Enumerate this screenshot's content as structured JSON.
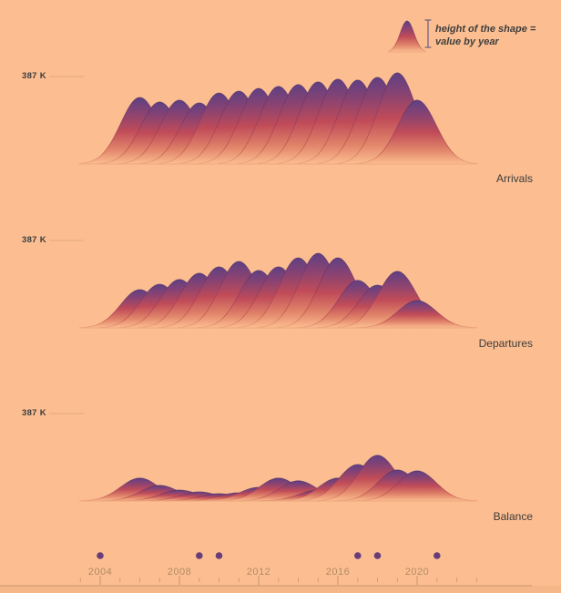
{
  "legend": {
    "line1": "height of the shape =",
    "line2": "value by year"
  },
  "chart_data": {
    "type": "area",
    "variant": "ridgeline",
    "years": [
      2006,
      2007,
      2008,
      2009,
      2010,
      2011,
      2012,
      2013,
      2014,
      2015,
      2016,
      2017,
      2018,
      2019,
      2020
    ],
    "unit": "thousands",
    "reference_label": "387 K",
    "reference_k": 387,
    "series": [
      {
        "name": "Arrivals",
        "values_k": [
          294,
          274,
          282,
          270,
          314,
          322,
          334,
          343,
          351,
          363,
          375,
          371,
          383,
          403,
          282
        ]
      },
      {
        "name": "Departures",
        "values_k": [
          169,
          193,
          214,
          242,
          270,
          294,
          254,
          270,
          310,
          330,
          310,
          210,
          189,
          250,
          121
        ]
      },
      {
        "name": "Balance",
        "values_k": [
          101,
          69,
          48,
          40,
          32,
          36,
          60,
          101,
          89,
          48,
          101,
          161,
          202,
          137,
          133
        ]
      }
    ],
    "axis": {
      "tick_start_year": 2003,
      "tick_end_year": 2023,
      "labeled_years": [
        2004,
        2008,
        2012,
        2016,
        2020
      ]
    },
    "event_dot_years": [
      2004,
      2009,
      2010,
      2017,
      2018,
      2021
    ]
  },
  "colors": {
    "background": "#fcbe90",
    "ridge_gradient": [
      "#5f4084",
      "#8d4370",
      "#c04b58",
      "#e1856a",
      "#fcbe90"
    ],
    "ridge_gradient_stops": [
      0,
      0.25,
      0.5,
      0.78,
      1
    ],
    "ridge_stroke_gradient": [
      "#50336f",
      "#9c3f5e",
      "#c5564f",
      "#eda57d"
    ],
    "ridge_stroke_stops": [
      0,
      0.5,
      0.8,
      1
    ],
    "dot": "#6a3d7a",
    "axis": "#a97f58",
    "year_label": "#b28a64",
    "reference_line": "#e0a87c",
    "text_dark": "#3c3c3c",
    "legend_bar": "#7f6a83"
  }
}
